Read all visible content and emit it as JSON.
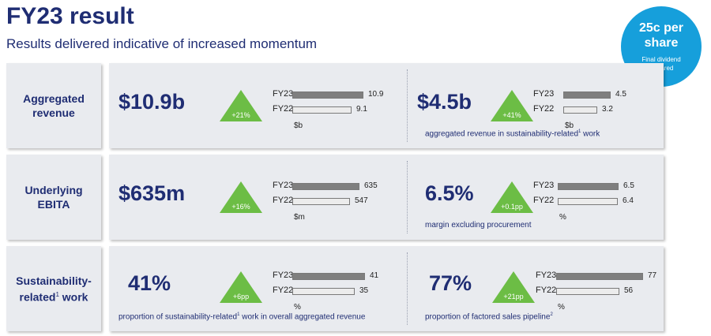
{
  "header": {
    "title": "FY23 result",
    "subtitle": "Results delivered indicative of increased momentum"
  },
  "badge": {
    "line1": "25c per",
    "line2": "share",
    "sub1": "Final dividend",
    "sub2": "declared"
  },
  "colors": {
    "navy": "#1f2d73",
    "green": "#6cbd45",
    "badge_blue": "#169fdb",
    "fy23_bar": "#7f7f7f",
    "fy22_bar": "#ececec"
  },
  "rows": [
    {
      "label_line1": "Aggregated",
      "label_line2": "revenue",
      "metrics": [
        {
          "value": "$10.9b",
          "change": "+21%",
          "unit": "$b",
          "caption": "",
          "footnote": "",
          "caption_tail": ""
        },
        {
          "value": "$4.5b",
          "change": "+41%",
          "unit": "$b",
          "caption": "aggregated revenue in sustainability-related",
          "footnote": "1",
          "caption_tail": " work"
        }
      ]
    },
    {
      "label_line1": "Underlying",
      "label_line2": "EBITA",
      "metrics": [
        {
          "value": "$635m",
          "change": "+16%",
          "unit": "$m",
          "caption": "",
          "footnote": "",
          "caption_tail": ""
        },
        {
          "value": "6.5%",
          "change": "+0.1pp",
          "unit": "%",
          "caption": "margin excluding procurement",
          "footnote": "",
          "caption_tail": ""
        }
      ]
    },
    {
      "label_line1": "Sustainability-",
      "label_line2": "related",
      "label_footnote": "1",
      "label_tail": " work",
      "metrics": [
        {
          "value": "41%",
          "change": "+6pp",
          "unit": "%",
          "caption": "proportion of sustainability-related",
          "footnote": "1",
          "caption_tail": " work in overall aggregated revenue"
        },
        {
          "value": "77%",
          "change": "+21pp",
          "unit": "%",
          "caption": "proportion of factored sales pipeline",
          "footnote": "2",
          "caption_tail": ""
        }
      ]
    }
  ],
  "chart_data": [
    {
      "type": "bar",
      "categories": [
        "FY23",
        "FY22"
      ],
      "values": [
        10.9,
        9.1
      ],
      "labels": [
        "10.9",
        "9.1"
      ],
      "unit": "$b"
    },
    {
      "type": "bar",
      "categories": [
        "FY23",
        "FY22"
      ],
      "values": [
        4.5,
        3.2
      ],
      "labels": [
        "4.5",
        "3.2"
      ],
      "unit": "$b"
    },
    {
      "type": "bar",
      "categories": [
        "FY23",
        "FY22"
      ],
      "values": [
        635,
        547
      ],
      "labels": [
        "635",
        "547"
      ],
      "unit": "$m"
    },
    {
      "type": "bar",
      "categories": [
        "FY23",
        "FY22"
      ],
      "values": [
        6.5,
        6.4
      ],
      "labels": [
        "6.5",
        "6.4"
      ],
      "unit": "%"
    },
    {
      "type": "bar",
      "categories": [
        "FY23",
        "FY22"
      ],
      "values": [
        41,
        35
      ],
      "labels": [
        "41",
        "35"
      ],
      "unit": "%"
    },
    {
      "type": "bar",
      "categories": [
        "FY23",
        "FY22"
      ],
      "values": [
        77,
        56
      ],
      "labels": [
        "77",
        "56"
      ],
      "unit": "%"
    }
  ]
}
